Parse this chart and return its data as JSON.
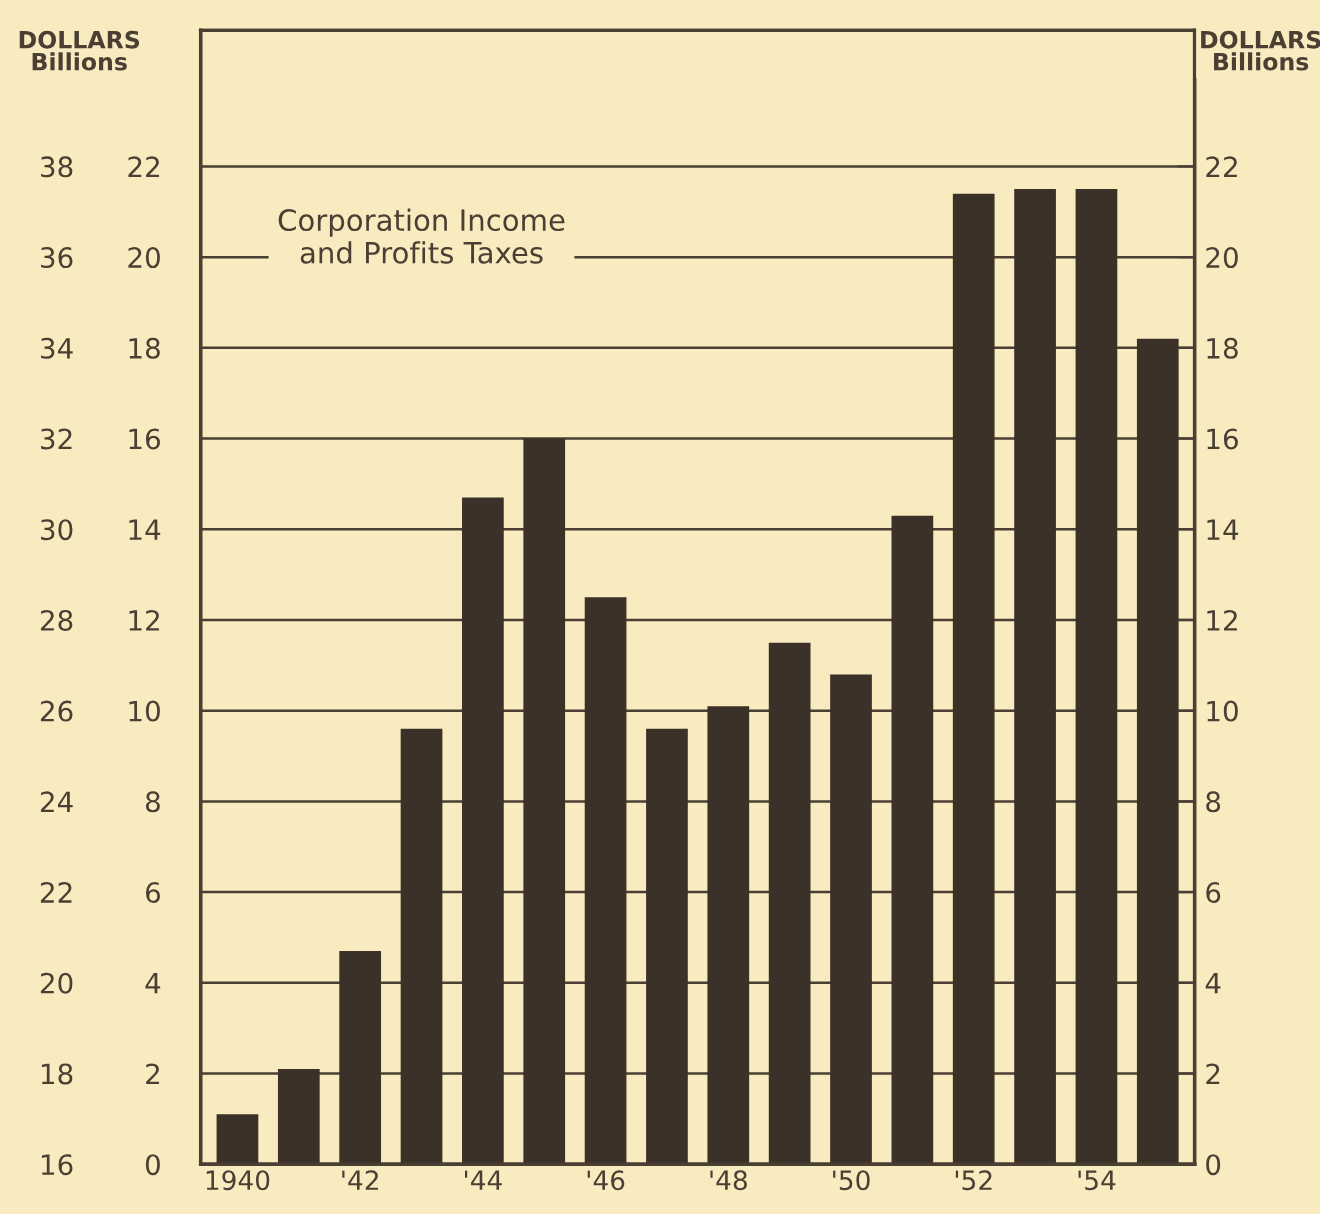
{
  "chart_data": {
    "type": "bar",
    "title": "Corporation Income\nand Profits Taxes",
    "ylabel": "DOLLARS\nBillions",
    "y2label": "DOLLARS\nBillions",
    "categories": [
      "1940",
      null,
      "'42",
      null,
      "'44",
      null,
      "'46",
      null,
      "'48",
      null,
      "'50",
      null,
      "'52",
      null,
      "'54",
      null
    ],
    "values": [
      1.1,
      2.1,
      4.7,
      9.6,
      14.7,
      16.0,
      12.5,
      9.6,
      10.1,
      11.5,
      10.8,
      14.3,
      21.4,
      21.5,
      21.5,
      18.2
    ],
    "color": "#3b3128",
    "ylim": [
      0,
      25
    ],
    "yticks": [
      0,
      2,
      4,
      6,
      8,
      10,
      12,
      14,
      16,
      18,
      20,
      22
    ],
    "y2lim": [
      0,
      25
    ],
    "y2ticks": [
      0,
      2,
      4,
      6,
      8,
      10,
      12,
      14,
      16,
      18,
      20,
      22
    ],
    "y3lim": [
      16,
      41
    ],
    "y3ticks": [
      16,
      18,
      20,
      22,
      24,
      26,
      28,
      30,
      32,
      34,
      36,
      38
    ],
    "grid": "y"
  }
}
